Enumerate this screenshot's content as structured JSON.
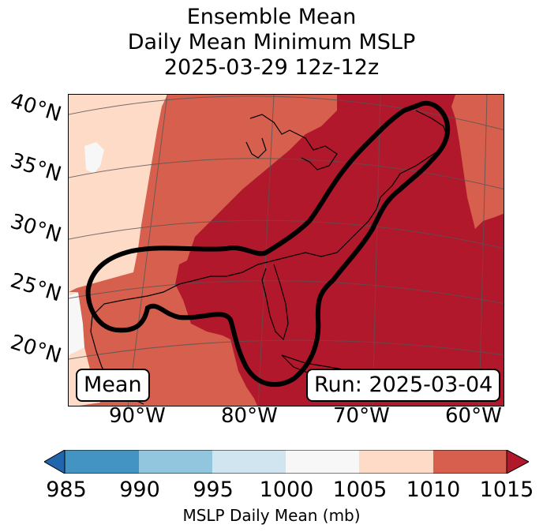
{
  "title": {
    "line1": "Ensemble Mean",
    "line2": "Daily Mean Minimum MSLP",
    "line3": "2025-03-29 12z-12z"
  },
  "map": {
    "lat_labels": [
      "40°N",
      "35°N",
      "30°N",
      "25°N",
      "20°N"
    ],
    "lon_labels": [
      "90°W",
      "80°W",
      "70°W",
      "60°W"
    ],
    "mean_box": "Mean",
    "run_box": "Run: 2025-03-04",
    "colors": {
      "lt1005": "#f7f7f7",
      "r1005_1010": "#fddbc7",
      "r1010_1015": "#d6604d",
      "gt1015": "#b2182b"
    }
  },
  "colorbar": {
    "ticks": [
      "985",
      "990",
      "995",
      "1000",
      "1005",
      "1010",
      "1015"
    ],
    "label": "MSLP Daily Mean (mb)",
    "colors": [
      "#2166ac",
      "#4393c3",
      "#92c5de",
      "#d1e5f0",
      "#f7f7f7",
      "#fddbc7",
      "#d6604d",
      "#b2182b"
    ]
  }
}
